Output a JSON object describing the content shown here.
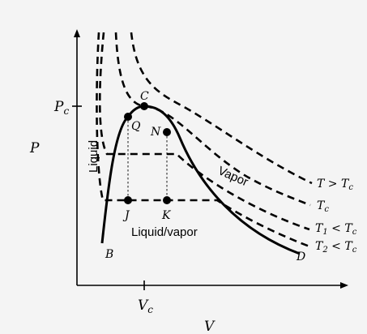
{
  "figure": {
    "background": "#f4f4f4",
    "axes": {
      "x_label": "V",
      "y_label": "P",
      "x_tick_label": "V_c",
      "y_tick_label": "P_c"
    },
    "isotherm_labels": [
      "T > T_c",
      "T_c",
      "T_1 < T_c",
      "T_2 < T_c"
    ],
    "region_labels": {
      "liquid": "Liquid",
      "vapor": "Vapor",
      "two_phase": "Liquid/vapor"
    },
    "points": [
      "C",
      "Q",
      "N",
      "J",
      "K",
      "B",
      "D"
    ]
  }
}
